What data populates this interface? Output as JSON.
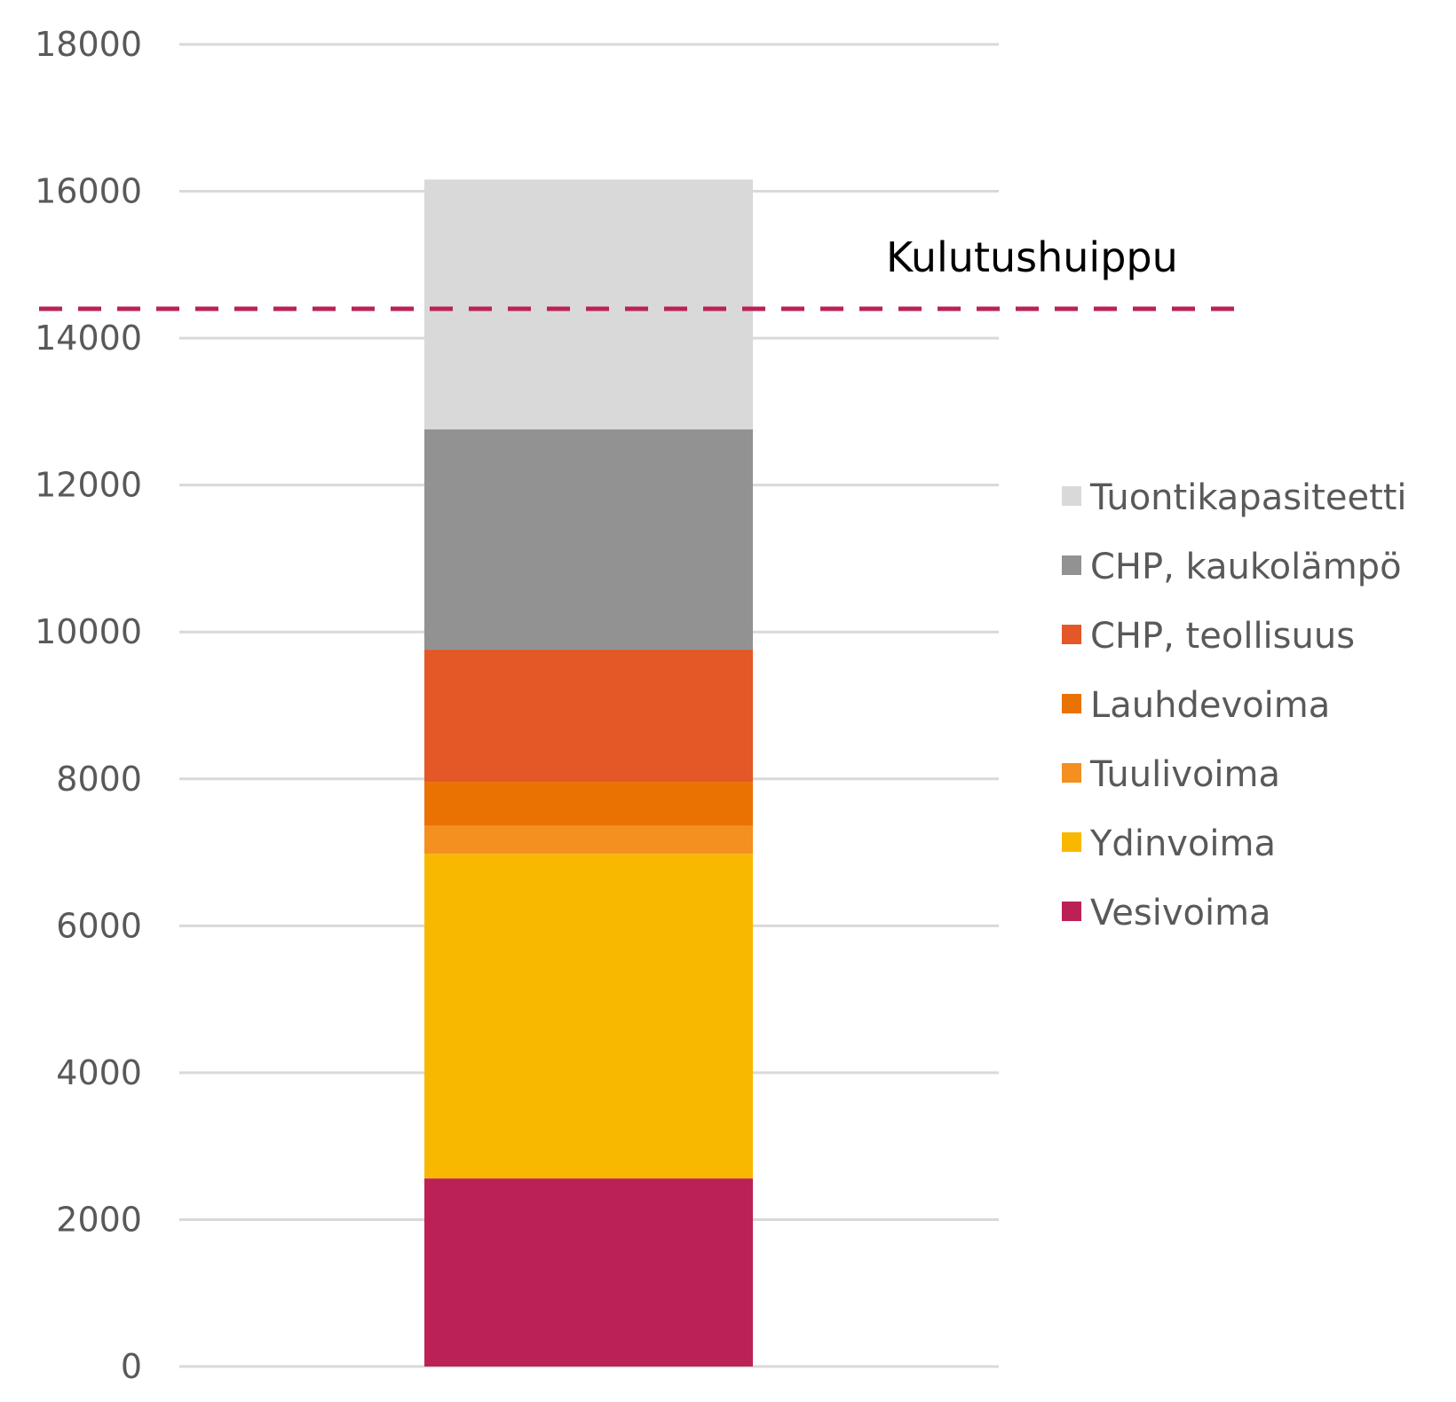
{
  "chart_data": {
    "type": "bar",
    "stacked": true,
    "ylim": [
      0,
      18000
    ],
    "yticks": [
      0,
      2000,
      4000,
      6000,
      8000,
      10000,
      12000,
      14000,
      16000,
      18000
    ],
    "grid": true,
    "legend_position": "right",
    "series": [
      {
        "name": "Vesivoima",
        "value": 2560,
        "color": "#BB2157"
      },
      {
        "name": "Ydinvoima",
        "value": 4420,
        "color": "#F9B800"
      },
      {
        "name": "Tuulivoima",
        "value": 380,
        "color": "#F39020"
      },
      {
        "name": "Lauhdevoima",
        "value": 600,
        "color": "#EA7203"
      },
      {
        "name": "CHP, teollisuus",
        "value": 1800,
        "color": "#E45726"
      },
      {
        "name": "CHP, kaukolämpö",
        "value": 3000,
        "color": "#929292"
      },
      {
        "name": "Tuontikapasiteetti",
        "value": 3400,
        "color": "#D9D9D9"
      }
    ],
    "annotation": {
      "label": "Kulutushuippu",
      "value": 14400,
      "color": "#BB2157",
      "style": "dashed"
    }
  }
}
